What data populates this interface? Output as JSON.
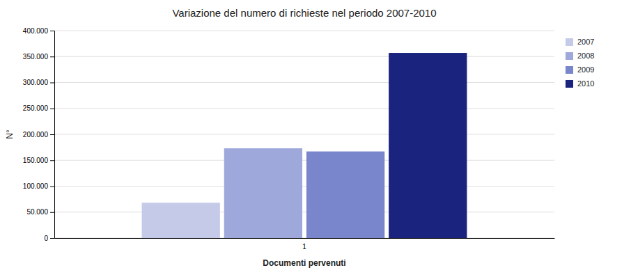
{
  "chart_data": {
    "type": "bar",
    "title": "Variazione del numero di richieste nel periodo 2007-2010",
    "xlabel": "Documenti pervenuti",
    "ylabel": "N°",
    "categories": [
      "1"
    ],
    "series": [
      {
        "name": "2007",
        "color": "#c5cae9",
        "values": [
          68000
        ]
      },
      {
        "name": "2008",
        "color": "#9fa8da",
        "values": [
          173000
        ]
      },
      {
        "name": "2009",
        "color": "#7986cb",
        "values": [
          167000
        ]
      },
      {
        "name": "2010",
        "color": "#1a237e",
        "values": [
          357000
        ]
      }
    ],
    "ylim": [
      0,
      400000
    ],
    "yticks": [
      0,
      {
        "value": 50000,
        "label": "50.000"
      },
      {
        "value": 100000,
        "label": "100.000"
      },
      {
        "value": 150000,
        "label": "150.000"
      },
      {
        "value": 200000,
        "label": "200.000"
      },
      {
        "value": 250000,
        "label": "250.000"
      },
      {
        "value": 300000,
        "label": "300.000"
      },
      {
        "value": 350000,
        "label": "350.000"
      },
      {
        "value": 400000,
        "label": "400.000"
      }
    ],
    "grid": true,
    "legend": "right"
  }
}
